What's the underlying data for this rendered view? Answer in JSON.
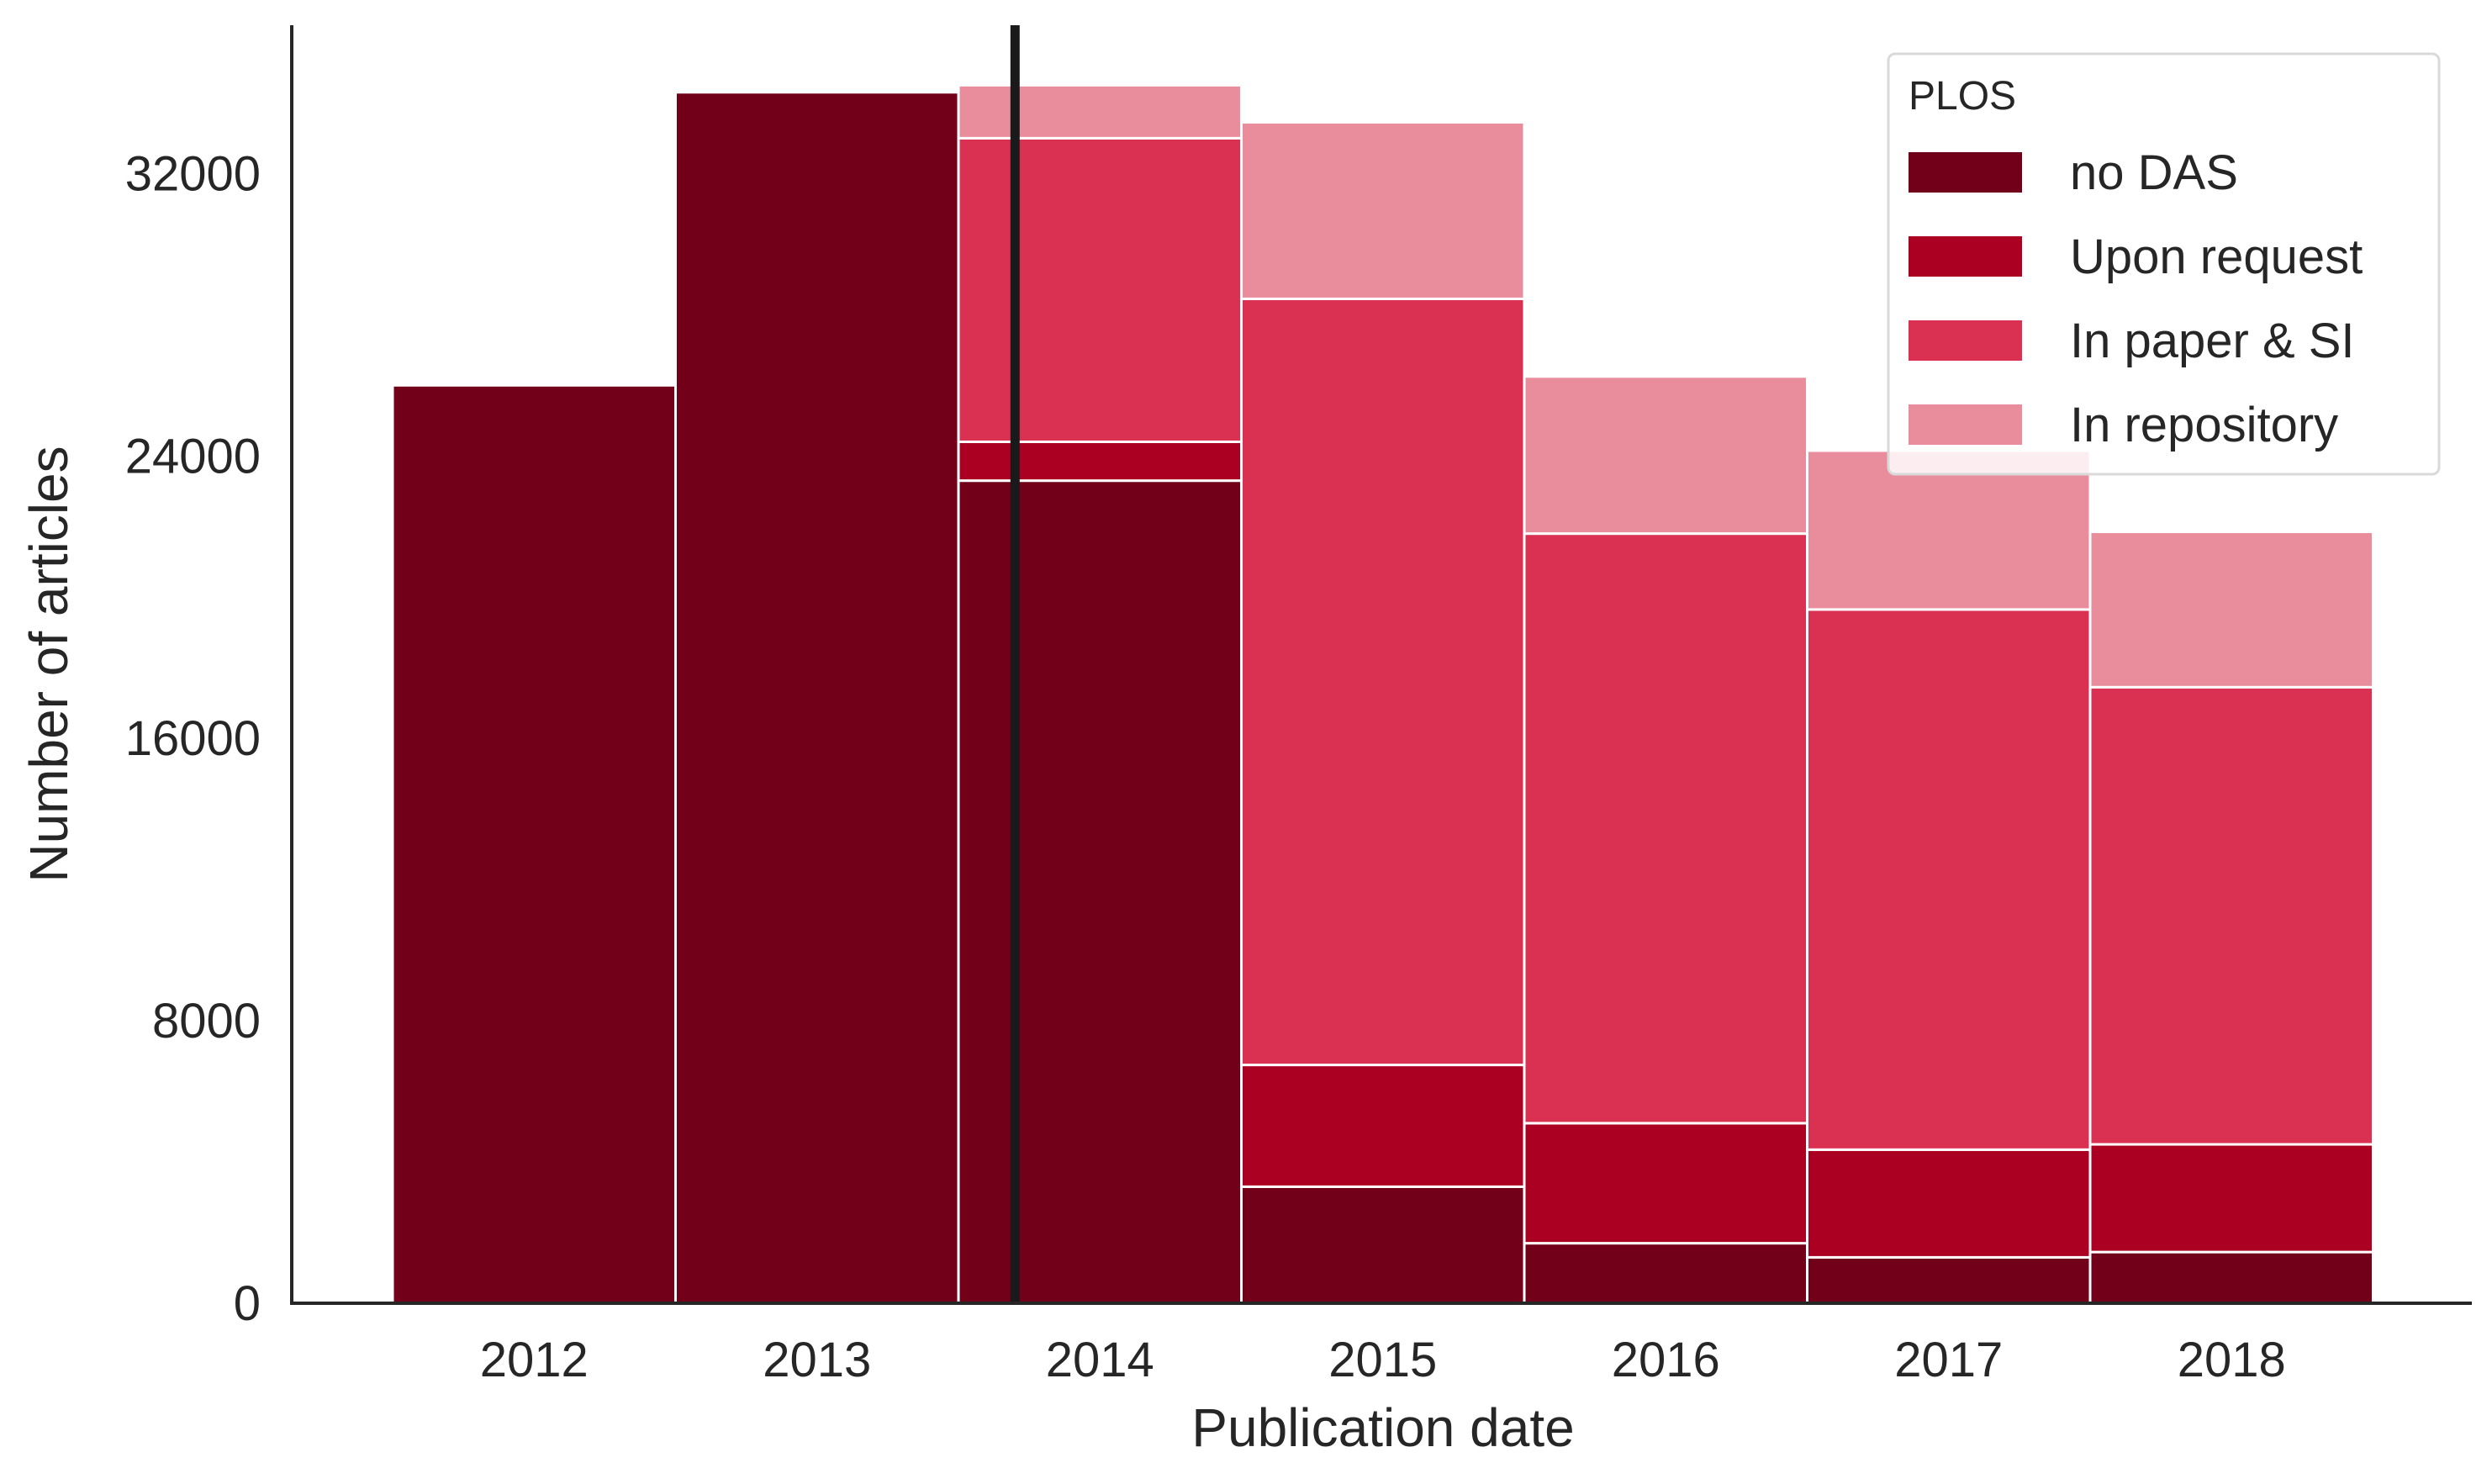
{
  "chart_data": {
    "type": "bar",
    "stacked": true,
    "xlabel": "Publication date",
    "ylabel": "Number of articles",
    "categories": [
      "2012",
      "2013",
      "2014",
      "2015",
      "2016",
      "2017",
      "2018"
    ],
    "ylim": [
      0,
      36200
    ],
    "yticks": [
      "0",
      "8000",
      "16000",
      "24000",
      "32000"
    ],
    "ytick_values": [
      0,
      8000,
      16000,
      24000,
      32000
    ],
    "grid": false,
    "legend": {
      "title": "PLOS",
      "position": "top-right"
    },
    "series": [
      {
        "name": "no DAS",
        "color": "#720019",
        "values": [
          26000,
          34300,
          23300,
          3300,
          1700,
          1300,
          1450
        ]
      },
      {
        "name": "Upon request",
        "color": "#ac0023",
        "values": [
          0,
          0,
          1100,
          3450,
          3400,
          3050,
          3050
        ]
      },
      {
        "name": "In paper & SI",
        "color": "#da3051",
        "values": [
          0,
          0,
          8600,
          21700,
          16700,
          15300,
          12950
        ]
      },
      {
        "name": "In repository",
        "color": "#e98c9c",
        "values": [
          0,
          0,
          1500,
          5000,
          4450,
          4500,
          4400
        ]
      }
    ],
    "reference_line": {
      "x": 2013.7,
      "color": "#1a1a1a"
    }
  }
}
